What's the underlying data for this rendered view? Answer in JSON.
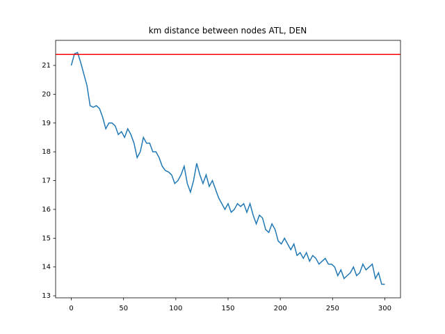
{
  "chart_data": {
    "type": "line",
    "title": "km distance between nodes ATL, DEN",
    "x": [
      0,
      3,
      6,
      9,
      12,
      15,
      18,
      21,
      24,
      27,
      30,
      33,
      36,
      39,
      42,
      45,
      48,
      51,
      54,
      57,
      60,
      63,
      66,
      69,
      72,
      75,
      78,
      81,
      84,
      87,
      90,
      93,
      96,
      99,
      102,
      105,
      108,
      111,
      114,
      117,
      120,
      123,
      126,
      129,
      132,
      135,
      138,
      141,
      144,
      147,
      150,
      153,
      156,
      159,
      162,
      165,
      168,
      171,
      174,
      177,
      180,
      183,
      186,
      189,
      192,
      195,
      198,
      201,
      204,
      207,
      210,
      213,
      216,
      219,
      222,
      225,
      228,
      231,
      234,
      237,
      240,
      243,
      246,
      249,
      252,
      255,
      258,
      261,
      264,
      267,
      270,
      273,
      276,
      279,
      282,
      285,
      288,
      291,
      294,
      297,
      300
    ],
    "series": [
      {
        "color": "#1f77b4",
        "values": [
          21.0,
          21.4,
          21.45,
          21.1,
          20.7,
          20.3,
          19.6,
          19.55,
          19.6,
          19.5,
          19.2,
          18.8,
          19.0,
          19.0,
          18.9,
          18.6,
          18.7,
          18.5,
          18.8,
          18.6,
          18.3,
          17.8,
          18.0,
          18.5,
          18.3,
          18.3,
          18.0,
          18.0,
          17.8,
          17.5,
          17.35,
          17.3,
          17.2,
          16.9,
          17.0,
          17.2,
          17.5,
          16.9,
          16.6,
          17.0,
          17.6,
          17.2,
          16.9,
          17.2,
          16.8,
          17.0,
          16.7,
          16.4,
          16.2,
          16.0,
          16.2,
          15.9,
          16.0,
          16.2,
          16.1,
          16.2,
          15.9,
          16.2,
          15.8,
          15.5,
          15.8,
          15.7,
          15.3,
          15.2,
          15.5,
          15.3,
          14.9,
          14.8,
          15.0,
          14.8,
          14.6,
          14.8,
          14.4,
          14.5,
          14.3,
          14.5,
          14.2,
          14.4,
          14.3,
          14.1,
          14.2,
          14.3,
          14.1,
          14.1,
          14.0,
          13.7,
          13.9,
          13.6,
          13.7,
          13.8,
          14.0,
          13.7,
          13.8,
          14.1,
          13.9,
          14.0,
          14.1,
          13.6,
          13.8,
          13.4,
          13.4
        ]
      }
    ],
    "hlines": [
      {
        "y": 21.38,
        "color": "red"
      }
    ],
    "xlim": [
      -15,
      315
    ],
    "ylim": [
      12.93,
      21.87
    ],
    "xticks": [
      0,
      50,
      100,
      150,
      200,
      250,
      300
    ],
    "yticks": [
      13,
      14,
      15,
      16,
      17,
      18,
      19,
      20,
      21
    ]
  }
}
